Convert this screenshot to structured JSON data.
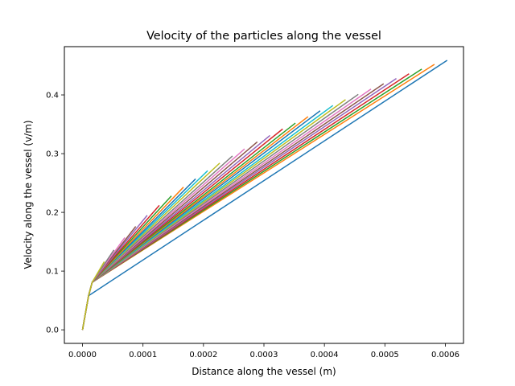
{
  "chart_data": {
    "type": "line",
    "title": "Velocity of the particles along the vessel",
    "xlabel": "Distance along the vessel (m)",
    "ylabel": "Velocity along the vessel (v/m)",
    "xlim": [
      -3e-05,
      0.00063
    ],
    "ylim": [
      -0.0231,
      0.4822
    ],
    "grid": false,
    "legend": "none",
    "xticks": [
      {
        "value": 0.0,
        "label": "0.0000"
      },
      {
        "value": 0.0001,
        "label": "0.0001"
      },
      {
        "value": 0.0002,
        "label": "0.0002"
      },
      {
        "value": 0.0003,
        "label": "0.0003"
      },
      {
        "value": 0.0004,
        "label": "0.0004"
      },
      {
        "value": 0.0005,
        "label": "0.0005"
      },
      {
        "value": 0.0006,
        "label": "0.0006"
      }
    ],
    "yticks": [
      {
        "value": 0.0,
        "label": "0.0"
      },
      {
        "value": 0.1,
        "label": "0.1"
      },
      {
        "value": 0.2,
        "label": "0.2"
      },
      {
        "value": 0.3,
        "label": "0.3"
      },
      {
        "value": 0.4,
        "label": "0.4"
      }
    ],
    "colors": [
      "#1f77b4",
      "#ff7f0e",
      "#2ca02c",
      "#d62728",
      "#9467bd",
      "#8c564b",
      "#e377c2",
      "#7f7f7f",
      "#bcbd22",
      "#17becf"
    ],
    "series": [
      {
        "x": [
          0.0,
          1e-05,
          0.000603
        ],
        "y": [
          0.0,
          0.058,
          0.459
        ]
      },
      {
        "x": [
          0.0,
          1e-05,
          1.6e-05,
          0.000582
        ],
        "y": [
          0.0,
          0.058,
          0.081,
          0.452
        ]
      },
      {
        "x": [
          0.0,
          1e-05,
          1.6e-05,
          0.000561
        ],
        "y": [
          0.0,
          0.058,
          0.081,
          0.444
        ]
      },
      {
        "x": [
          0.0,
          1e-05,
          1.6e-05,
          0.00054
        ],
        "y": [
          0.0,
          0.058,
          0.081,
          0.436
        ]
      },
      {
        "x": [
          0.0,
          1e-05,
          1.6e-05,
          0.000519
        ],
        "y": [
          0.0,
          0.058,
          0.081,
          0.428
        ]
      },
      {
        "x": [
          0.0,
          1e-05,
          1.6e-05,
          0.000498
        ],
        "y": [
          0.0,
          0.058,
          0.081,
          0.419
        ]
      },
      {
        "x": [
          0.0,
          1e-05,
          1.6e-05,
          0.000477
        ],
        "y": [
          0.0,
          0.058,
          0.081,
          0.41
        ]
      },
      {
        "x": [
          0.0,
          1e-05,
          1.6e-05,
          0.000456
        ],
        "y": [
          0.0,
          0.058,
          0.081,
          0.401
        ]
      },
      {
        "x": [
          0.0,
          1e-05,
          1.6e-05,
          0.000435
        ],
        "y": [
          0.0,
          0.058,
          0.081,
          0.392
        ]
      },
      {
        "x": [
          0.0,
          1e-05,
          1.6e-05,
          0.000414
        ],
        "y": [
          0.0,
          0.058,
          0.081,
          0.382
        ]
      },
      {
        "x": [
          0.0,
          1e-05,
          1.6e-05,
          0.000393
        ],
        "y": [
          0.0,
          0.058,
          0.081,
          0.373
        ]
      },
      {
        "x": [
          0.0,
          1e-05,
          1.6e-05,
          0.000373
        ],
        "y": [
          0.0,
          0.058,
          0.081,
          0.363
        ]
      },
      {
        "x": [
          0.0,
          1e-05,
          1.6e-05,
          0.000352
        ],
        "y": [
          0.0,
          0.058,
          0.081,
          0.352
        ]
      },
      {
        "x": [
          0.0,
          1e-05,
          1.6e-05,
          0.000331
        ],
        "y": [
          0.0,
          0.058,
          0.081,
          0.342
        ]
      },
      {
        "x": [
          0.0,
          1e-05,
          1.6e-05,
          0.00031
        ],
        "y": [
          0.0,
          0.058,
          0.081,
          0.331
        ]
      },
      {
        "x": [
          0.0,
          1e-05,
          1.6e-05,
          0.000289
        ],
        "y": [
          0.0,
          0.058,
          0.081,
          0.32
        ]
      },
      {
        "x": [
          0.0,
          1e-05,
          1.6e-05,
          0.000268
        ],
        "y": [
          0.0,
          0.058,
          0.081,
          0.308
        ]
      },
      {
        "x": [
          0.0,
          1e-05,
          1.6e-05,
          0.000248
        ],
        "y": [
          0.0,
          0.058,
          0.081,
          0.296
        ]
      },
      {
        "x": [
          0.0,
          1e-05,
          1.6e-05,
          0.000227
        ],
        "y": [
          0.0,
          0.058,
          0.081,
          0.284
        ]
      },
      {
        "x": [
          0.0,
          1e-05,
          1.6e-05,
          0.000207
        ],
        "y": [
          0.0,
          0.058,
          0.081,
          0.271
        ]
      },
      {
        "x": [
          0.0,
          1e-05,
          1.6e-05,
          0.000187
        ],
        "y": [
          0.0,
          0.058,
          0.081,
          0.257
        ]
      },
      {
        "x": [
          0.0,
          1e-05,
          1.6e-05,
          0.000167
        ],
        "y": [
          0.0,
          0.058,
          0.081,
          0.243
        ]
      },
      {
        "x": [
          0.0,
          1e-05,
          1.6e-05,
          0.000147
        ],
        "y": [
          0.0,
          0.058,
          0.081,
          0.228
        ]
      },
      {
        "x": [
          0.0,
          1e-05,
          1.6e-05,
          0.000127
        ],
        "y": [
          0.0,
          0.058,
          0.081,
          0.212
        ]
      },
      {
        "x": [
          0.0,
          1e-05,
          1.6e-05,
          0.000107
        ],
        "y": [
          0.0,
          0.058,
          0.081,
          0.195
        ]
      },
      {
        "x": [
          0.0,
          1e-05,
          1.6e-05,
          8.8e-05
        ],
        "y": [
          0.0,
          0.058,
          0.081,
          0.176
        ]
      },
      {
        "x": [
          0.0,
          1e-05,
          1.6e-05,
          7e-05
        ],
        "y": [
          0.0,
          0.058,
          0.081,
          0.157
        ]
      },
      {
        "x": [
          0.0,
          1e-05,
          1.6e-05,
          5.2e-05
        ],
        "y": [
          0.0,
          0.058,
          0.081,
          0.136
        ]
      },
      {
        "x": [
          0.0,
          1e-05,
          1.6e-05,
          3.6e-05
        ],
        "y": [
          0.0,
          0.058,
          0.081,
          0.116
        ]
      }
    ]
  }
}
